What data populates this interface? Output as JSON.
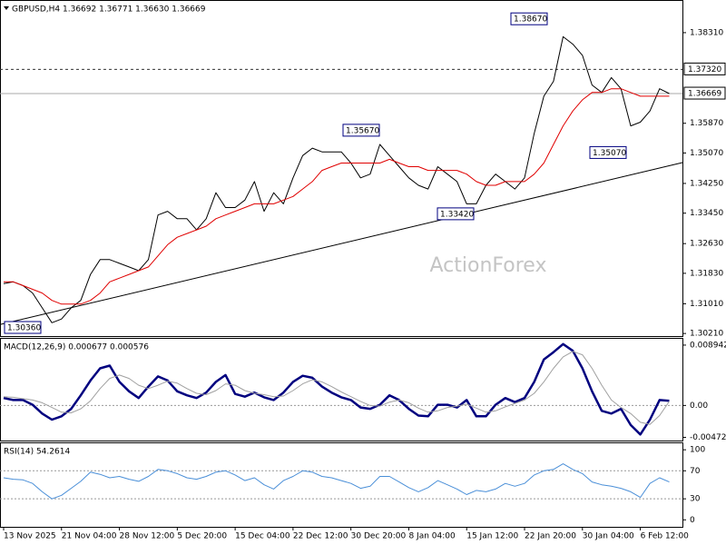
{
  "chart_data": [
    {
      "type": "line",
      "title": "GBPUSD,H4  1.36692 1.36771 1.36630 1.36669",
      "watermark": "ActionForex",
      "categories": [
        "13 Nov 2025",
        null,
        null,
        null,
        null,
        null,
        "21 Nov 04:00",
        null,
        null,
        null,
        null,
        null,
        "28 Nov 12:00",
        null,
        null,
        null,
        null,
        null,
        "5 Dec 20:00",
        null,
        null,
        null,
        null,
        null,
        "15 Dec 04:00",
        null,
        null,
        null,
        null,
        null,
        "22 Dec 12:00",
        null,
        null,
        null,
        null,
        null,
        "30 Dec 20:00",
        null,
        null,
        null,
        null,
        null,
        "8 Jan 04:00",
        null,
        null,
        null,
        null,
        null,
        "15 Jan 12:00",
        null,
        null,
        null,
        null,
        null,
        "22 Jan 20:00",
        null,
        null,
        null,
        null,
        null,
        "30 Jan 04:00",
        null,
        null,
        null,
        null,
        null,
        "6 Feb 12:00",
        null,
        null,
        null
      ],
      "series": [
        {
          "color": "#000000",
          "width": 1,
          "values": [
            1.3155,
            1.316,
            1.315,
            1.313,
            1.309,
            1.305,
            1.306,
            1.309,
            1.311,
            1.318,
            1.322,
            1.322,
            1.321,
            1.32,
            1.319,
            1.322,
            1.334,
            1.335,
            1.333,
            1.333,
            1.33,
            1.333,
            1.34,
            1.336,
            1.336,
            1.338,
            1.343,
            1.335,
            1.34,
            1.337,
            1.344,
            1.35,
            1.352,
            1.351,
            1.351,
            1.351,
            1.348,
            1.344,
            1.345,
            1.353,
            1.35,
            1.347,
            1.344,
            1.342,
            1.341,
            1.347,
            1.345,
            1.343,
            1.337,
            1.337,
            1.342,
            1.345,
            1.343,
            1.341,
            1.344,
            1.356,
            1.366,
            1.37,
            1.382,
            1.38,
            1.377,
            1.369,
            1.367,
            1.371,
            1.368,
            1.358,
            1.359,
            1.362,
            1.368,
            1.3667
          ]
        },
        {
          "color": "#e00000",
          "width": 1,
          "values": [
            1.316,
            1.316,
            1.315,
            1.314,
            1.313,
            1.311,
            1.31,
            1.31,
            1.31,
            1.311,
            1.313,
            1.316,
            1.317,
            1.318,
            1.319,
            1.32,
            1.323,
            1.326,
            1.328,
            1.329,
            1.33,
            1.331,
            1.333,
            1.334,
            1.335,
            1.336,
            1.337,
            1.337,
            1.337,
            1.338,
            1.339,
            1.341,
            1.343,
            1.346,
            1.347,
            1.348,
            1.348,
            1.348,
            1.348,
            1.348,
            1.349,
            1.348,
            1.347,
            1.347,
            1.346,
            1.346,
            1.346,
            1.346,
            1.345,
            1.343,
            1.342,
            1.342,
            1.343,
            1.343,
            1.343,
            1.345,
            1.348,
            1.353,
            1.358,
            1.362,
            1.365,
            1.367,
            1.367,
            1.368,
            1.368,
            1.367,
            1.366,
            1.366,
            1.366,
            1.366
          ]
        }
      ],
      "ylim": [
        1.3014,
        1.3914
      ],
      "yticks": [
        {
          "value": 1.3831,
          "label": "1.38310"
        },
        {
          "value": 1.3587,
          "label": "1.35870"
        },
        {
          "value": 1.3507,
          "label": "1.35070"
        },
        {
          "value": 1.3425,
          "label": "1.34250"
        },
        {
          "value": 1.3345,
          "label": "1.33450"
        },
        {
          "value": 1.3263,
          "label": "1.32630"
        },
        {
          "value": 1.3183,
          "label": "1.31830"
        },
        {
          "value": 1.3101,
          "label": "1.31010"
        },
        {
          "value": 1.3021,
          "label": "1.30210"
        }
      ],
      "hlines": [
        {
          "value": 1.3732,
          "label": "1.37320",
          "style": "dashed"
        },
        {
          "value": 1.36669,
          "label": "1.36669",
          "style": "solid"
        }
      ],
      "trendline": {
        "start": 1.3045,
        "end": 1.3481
      },
      "annotations": [
        {
          "value": 1.3036,
          "label": "1.30360"
        },
        {
          "value": 1.3567,
          "label": "1.35670"
        },
        {
          "value": 1.3342,
          "label": "1.33420"
        },
        {
          "value": 1.3867,
          "label": "1.38670"
        },
        {
          "value": 1.3507,
          "label": "1.35070"
        }
      ]
    },
    {
      "type": "line",
      "title": "MACD(12,26,9) 0.000677 0.000576",
      "series": [
        {
          "color": "#00007f",
          "width": 2.5,
          "values": [
            0.0011,
            0.0008,
            0.0008,
            0.0001,
            -0.0012,
            -0.0021,
            -0.0016,
            -0.0005,
            0.0015,
            0.0037,
            0.0055,
            0.0059,
            0.0035,
            0.0021,
            0.0011,
            0.0028,
            0.0043,
            0.0037,
            0.0021,
            0.0015,
            0.0011,
            0.0019,
            0.0035,
            0.0045,
            0.0017,
            0.0013,
            0.0019,
            0.0012,
            0.0008,
            0.0019,
            0.0035,
            0.0044,
            0.0041,
            0.0028,
            0.0019,
            0.0012,
            0.0008,
            -0.0003,
            -0.0005,
            0.0001,
            0.0015,
            0.0008,
            -0.0005,
            -0.0015,
            -0.0016,
            0.0001,
            0.0001,
            -0.0003,
            0.0008,
            -0.0016,
            -0.0016,
            0.0001,
            0.0011,
            0.0005,
            0.0011,
            0.0035,
            0.0068,
            0.0079,
            0.0091,
            0.0081,
            0.0055,
            0.0021,
            -0.0008,
            -0.0012,
            -0.0005,
            -0.0029,
            -0.0043,
            -0.0021,
            0.0008,
            0.0007
          ]
        },
        {
          "color": "#a0a0a0",
          "width": 1,
          "values": [
            0.0013,
            0.0012,
            0.001,
            0.0008,
            0.0004,
            -0.0003,
            -0.001,
            -0.0011,
            -0.0005,
            0.0007,
            0.0025,
            0.004,
            0.0045,
            0.004,
            0.003,
            0.0025,
            0.003,
            0.0036,
            0.0033,
            0.0025,
            0.0018,
            0.0016,
            0.0022,
            0.0032,
            0.003,
            0.0022,
            0.0018,
            0.0016,
            0.0013,
            0.0014,
            0.0022,
            0.0032,
            0.0038,
            0.0035,
            0.0028,
            0.002,
            0.0013,
            0.0006,
            0,
            -0.0001,
            0.0005,
            0.0008,
            0.0004,
            -0.0004,
            -0.001,
            -0.0008,
            -0.0003,
            -0.0001,
            0.0002,
            -0.0004,
            -0.001,
            -0.0008,
            -0.0002,
            0.0003,
            0.0008,
            0.0018,
            0.0035,
            0.0055,
            0.0072,
            0.008,
            0.0075,
            0.0055,
            0.003,
            0.0008,
            -0.0003,
            -0.0012,
            -0.0025,
            -0.0028,
            -0.0015,
            0.0006
          ]
        }
      ],
      "ylim": [
        -0.0052,
        0.00974
      ],
      "yticks": [
        0.008942,
        {
          "value": 0,
          "label": "0.00"
        },
        -0.004725
      ],
      "grid": "dotted"
    },
    {
      "type": "line",
      "title": "RSI(14) 54.2614",
      "series": [
        {
          "color": "#4a8fd8",
          "width": 1,
          "values": [
            60,
            58,
            57,
            52,
            40,
            30,
            35,
            45,
            55,
            68,
            65,
            60,
            62,
            58,
            55,
            62,
            72,
            70,
            66,
            60,
            58,
            62,
            68,
            70,
            64,
            56,
            60,
            50,
            44,
            56,
            62,
            70,
            68,
            62,
            60,
            56,
            52,
            45,
            48,
            62,
            62,
            54,
            46,
            40,
            46,
            56,
            50,
            44,
            36,
            42,
            40,
            44,
            52,
            48,
            52,
            64,
            70,
            72,
            80,
            72,
            66,
            54,
            50,
            48,
            45,
            40,
            32,
            52,
            60,
            54
          ]
        }
      ],
      "ylim": [
        -10,
        108
      ],
      "yticks": [
        100,
        70,
        30,
        0
      ],
      "grid": "dotted"
    }
  ]
}
